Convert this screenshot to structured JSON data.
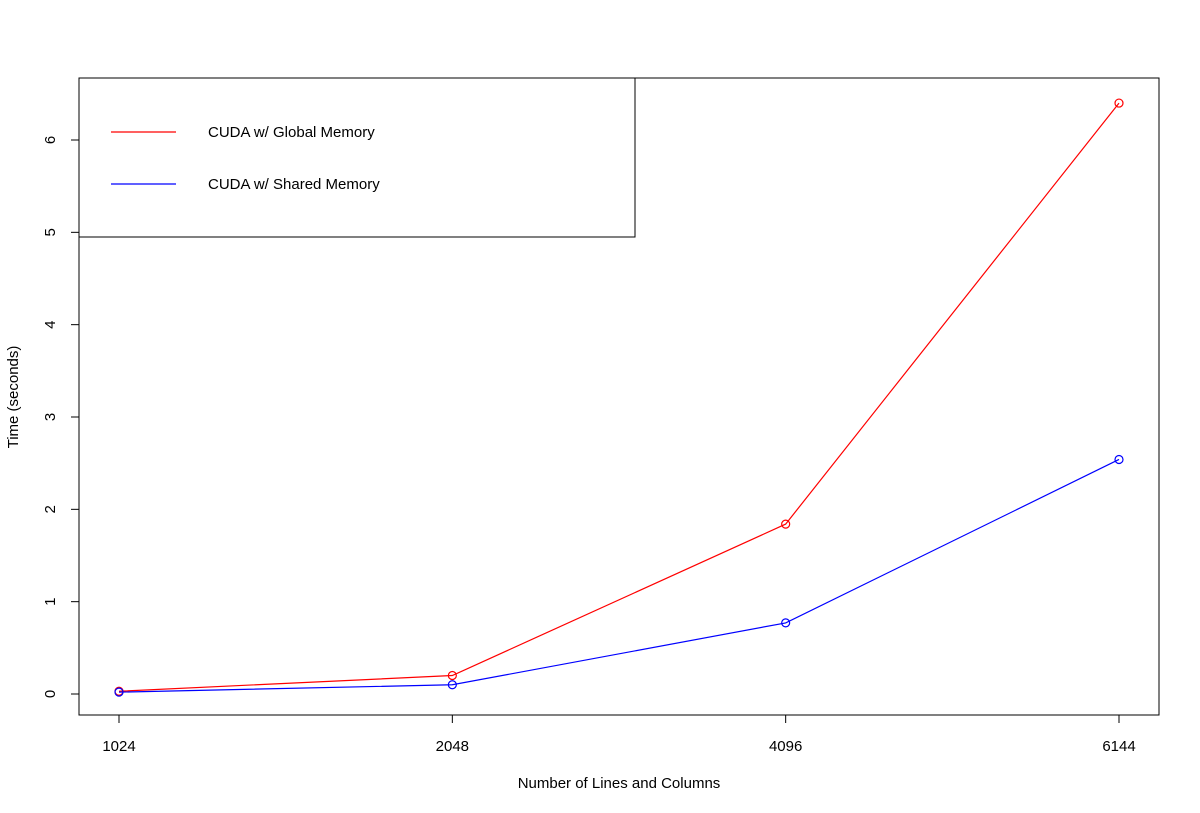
{
  "chart_data": {
    "type": "line",
    "title": "",
    "xlabel": "Number of Lines and Columns",
    "ylabel": "Time (seconds)",
    "categories": [
      "1024",
      "2048",
      "4096",
      "6144"
    ],
    "ylim": [
      0,
      6
    ],
    "yticks": [
      "0",
      "1",
      "2",
      "3",
      "4",
      "5",
      "6"
    ],
    "grid": false,
    "legend_position": "top-left",
    "series": [
      {
        "name": "CUDA w/ Global Memory",
        "color": "#ff0000",
        "values": [
          0.03,
          0.2,
          1.84,
          6.4
        ]
      },
      {
        "name": "CUDA w/ Shared Memory",
        "color": "#0000ff",
        "values": [
          0.02,
          0.1,
          0.77,
          2.54
        ]
      }
    ]
  }
}
